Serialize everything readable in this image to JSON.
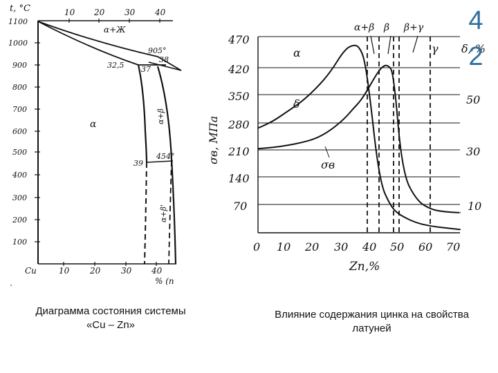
{
  "slide": {
    "number_top": "4",
    "number_bottom": "2"
  },
  "left_diagram": {
    "y_axis_label": "t, °C",
    "y_ticks": [
      "1100",
      "1000",
      "900",
      "800",
      "700",
      "600",
      "500",
      "400",
      "300",
      "200",
      "100"
    ],
    "x_ticks_top": [
      "10",
      "20",
      "30",
      "40"
    ],
    "x_ticks_bottom": [
      "10",
      "20",
      "30",
      "40"
    ],
    "x_origin_label": "Cu",
    "x_axis_label": "% (n",
    "labels": {
      "alpha_liquid": "α+Ж",
      "alpha": "α",
      "alpha_beta": "α+β",
      "alpha_beta_prime": "α+β'",
      "t905": "905°",
      "t454": "454°",
      "c38": "38",
      "c325": "32,5",
      "c37": "37",
      "c39": "39"
    },
    "caption_line1": "Диаграмма состояния системы",
    "caption_line2": "«Cu – Zn»"
  },
  "right_chart": {
    "title": "",
    "y_left_label": "σв, МПа",
    "y_right_label": "δ, %",
    "x_label": "Zn,%",
    "phase_labels": [
      "α+β",
      "β",
      "β+γ"
    ],
    "region_labels": {
      "alpha": "α",
      "gamma": "γ"
    },
    "curve_labels": {
      "delta": "δ",
      "sigma": "σв"
    },
    "caption_line1": "Влияние содержания цинка на свойства",
    "caption_line2": "латуней"
  },
  "chart_data": {
    "type": "line",
    "x": [
      0,
      5,
      10,
      15,
      20,
      25,
      30,
      33,
      35,
      37,
      39,
      41,
      43,
      45,
      47,
      50,
      55,
      60,
      65,
      70
    ],
    "x_ticks": [
      "0",
      "10",
      "20",
      "30",
      "40",
      "50",
      "60",
      "70"
    ],
    "y_left_ticks": [
      "470",
      "420",
      "350",
      "280",
      "210",
      "140",
      "70"
    ],
    "y_right_ticks": [
      "50",
      "30",
      "10"
    ],
    "xlabel": "Zn,%",
    "ylabel_left": "σв, МПа",
    "ylabel_right": "δ, %",
    "xlim": [
      0,
      70
    ],
    "ylim_left": [
      0,
      490
    ],
    "ylim_right": [
      0,
      60
    ],
    "series": [
      {
        "name": "δ",
        "axis": "right",
        "values": [
          32,
          34,
          37,
          40,
          44,
          49,
          56,
          57.5,
          57,
          53,
          40,
          24,
          14,
          10,
          7,
          5,
          3,
          2,
          1.5,
          1
        ]
      },
      {
        "name": "σв",
        "axis": "left",
        "values": [
          210,
          213,
          218,
          225,
          235,
          255,
          285,
          310,
          325,
          345,
          370,
          395,
          415,
          420,
          400,
          150,
          80,
          58,
          52,
          50
        ]
      }
    ],
    "phase_boundaries_x": [
      38,
      42,
      47,
      49,
      60
    ]
  }
}
